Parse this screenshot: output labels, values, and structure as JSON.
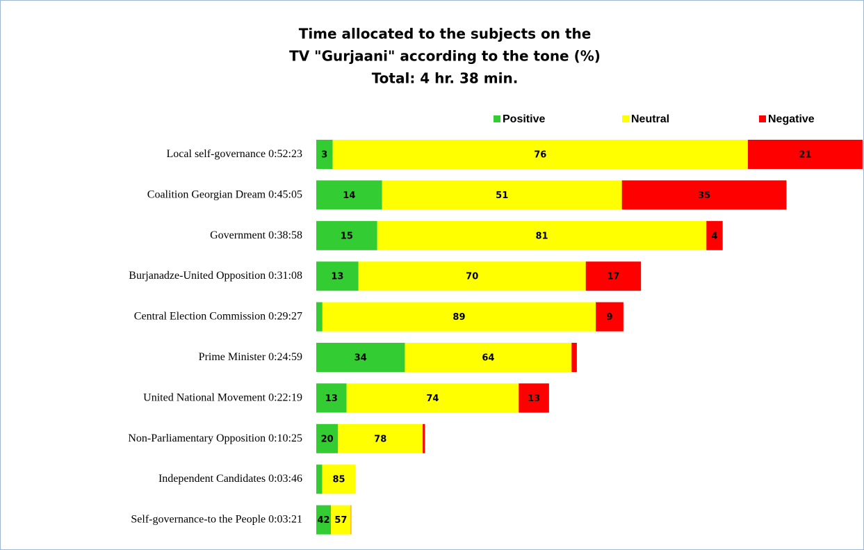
{
  "chart_data": {
    "type": "stacked-bar-horizontal",
    "title": [
      "Time allocated to the subjects on the",
      "TV \"Gurjaani\" according to the tone (%)",
      "Total:  4 hr.  38 min."
    ],
    "categories": [
      {
        "name": "Local self-governance",
        "time": "0:52:23"
      },
      {
        "name": "Coalition Georgian Dream",
        "time": "0:45:05"
      },
      {
        "name": "Government",
        "time": "0:38:58"
      },
      {
        "name": "Burjanadze-United Opposition",
        "time": "0:31:08"
      },
      {
        "name": "Central Election Commission",
        "time": "0:29:27"
      },
      {
        "name": "Prime Minister",
        "time": "0:24:59"
      },
      {
        "name": "United National Movement",
        "time": "0:22:19"
      },
      {
        "name": "Non-Parliamentary Opposition",
        "time": "0:10:25"
      },
      {
        "name": "Independent Candidates",
        "time": "0:03:46"
      },
      {
        "name": "Self-governance-to the People",
        "time": "0:03:21"
      }
    ],
    "series": [
      {
        "name": "Positive",
        "color": "#33cc33",
        "values": [
          3,
          14,
          15,
          13,
          2,
          34,
          13,
          20,
          15,
          42
        ]
      },
      {
        "name": "Neutral",
        "color": "#ffff00",
        "values": [
          76,
          51,
          81,
          70,
          89,
          64,
          74,
          78,
          85,
          57
        ]
      },
      {
        "name": "Negative",
        "color": "#ff0000",
        "values": [
          21,
          35,
          4,
          17,
          9,
          2,
          13,
          2,
          0,
          1
        ]
      }
    ],
    "legend": "top-right"
  }
}
